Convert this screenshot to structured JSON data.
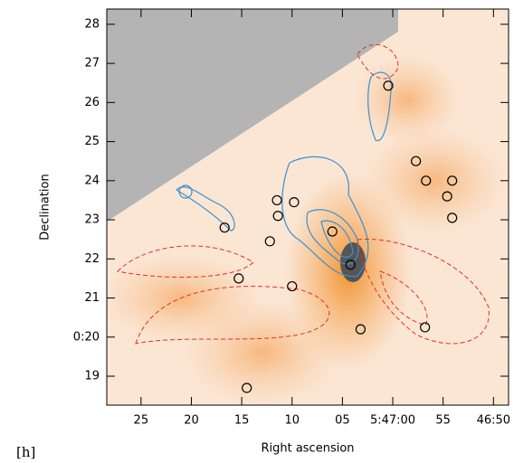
{
  "chart_data": {
    "type": "scatter",
    "x_label": "Right ascension",
    "y_label": "Declination",
    "annotation": "[h]",
    "xlim": [
      88.4,
      48.5
    ],
    "ylim": [
      18.26,
      28.39
    ],
    "xticks": [
      {
        "value": 85,
        "label": "25"
      },
      {
        "value": 80,
        "label": "20"
      },
      {
        "value": 75,
        "label": "15"
      },
      {
        "value": 70,
        "label": "10"
      },
      {
        "value": 65,
        "label": "05"
      },
      {
        "value": 60,
        "label": "5:47:00"
      },
      {
        "value": 55,
        "label": "55"
      },
      {
        "value": 50,
        "label": "46:50"
      }
    ],
    "yticks": [
      28,
      27,
      26,
      25,
      24,
      23,
      22,
      21,
      {
        "value": 20,
        "label": "0:20"
      },
      19
    ],
    "color": "#000000",
    "x": [
      60.45,
      57.7,
      56.7,
      54.1,
      54.6,
      54.1,
      71.5,
      69.8,
      71.4,
      76.7,
      66.0,
      72.2,
      75.3,
      70.0,
      64.2,
      63.2,
      56.8,
      74.5
    ],
    "values": [
      26.43,
      24.5,
      24.0,
      24.0,
      23.6,
      23.05,
      23.5,
      23.45,
      23.1,
      22.8,
      22.7,
      22.45,
      21.5,
      21.3,
      21.85,
      20.2,
      20.25,
      18.7
    ]
  }
}
